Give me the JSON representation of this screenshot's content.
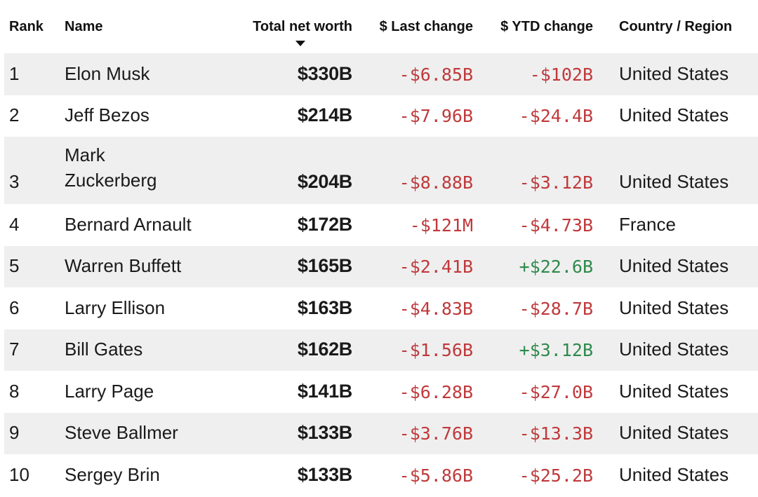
{
  "columns": {
    "rank": "Rank",
    "name": "Name",
    "total_net_worth": "Total net worth",
    "last_change": "$ Last change",
    "ytd_change": "$ YTD change",
    "country": "Country / Region"
  },
  "sort": {
    "column": "total_net_worth",
    "direction": "descending",
    "icon": "sort-down-arrow-icon"
  },
  "colors": {
    "negative": "#c0393b",
    "positive": "#2f8a4c",
    "shaded_row": "#efefef"
  },
  "rows": [
    {
      "rank": "1",
      "name": "Elon Musk",
      "worth": "$330B",
      "last": "-$6.85B",
      "last_sign": "neg",
      "ytd": "-$102B",
      "ytd_sign": "neg",
      "country": "United States"
    },
    {
      "rank": "2",
      "name": "Jeff Bezos",
      "worth": "$214B",
      "last": "-$7.96B",
      "last_sign": "neg",
      "ytd": "-$24.4B",
      "ytd_sign": "neg",
      "country": "United States"
    },
    {
      "rank": "3",
      "name": "Mark Zuckerberg",
      "worth": "$204B",
      "last": "-$8.88B",
      "last_sign": "neg",
      "ytd": "-$3.12B",
      "ytd_sign": "neg",
      "country": "United States"
    },
    {
      "rank": "4",
      "name": "Bernard Arnault",
      "worth": "$172B",
      "last": "-$121M",
      "last_sign": "neg",
      "ytd": "-$4.73B",
      "ytd_sign": "neg",
      "country": "France"
    },
    {
      "rank": "5",
      "name": "Warren Buffett",
      "worth": "$165B",
      "last": "-$2.41B",
      "last_sign": "neg",
      "ytd": "+$22.6B",
      "ytd_sign": "pos",
      "country": "United States"
    },
    {
      "rank": "6",
      "name": "Larry Ellison",
      "worth": "$163B",
      "last": "-$4.83B",
      "last_sign": "neg",
      "ytd": "-$28.7B",
      "ytd_sign": "neg",
      "country": "United States"
    },
    {
      "rank": "7",
      "name": "Bill Gates",
      "worth": "$162B",
      "last": "-$1.56B",
      "last_sign": "neg",
      "ytd": "+$3.12B",
      "ytd_sign": "pos",
      "country": "United States"
    },
    {
      "rank": "8",
      "name": "Larry Page",
      "worth": "$141B",
      "last": "-$6.28B",
      "last_sign": "neg",
      "ytd": "-$27.0B",
      "ytd_sign": "neg",
      "country": "United States"
    },
    {
      "rank": "9",
      "name": "Steve Ballmer",
      "worth": "$133B",
      "last": "-$3.76B",
      "last_sign": "neg",
      "ytd": "-$13.3B",
      "ytd_sign": "neg",
      "country": "United States"
    },
    {
      "rank": "10",
      "name": "Sergey Brin",
      "worth": "$133B",
      "last": "-$5.86B",
      "last_sign": "neg",
      "ytd": "-$25.2B",
      "ytd_sign": "neg",
      "country": "United States"
    }
  ]
}
